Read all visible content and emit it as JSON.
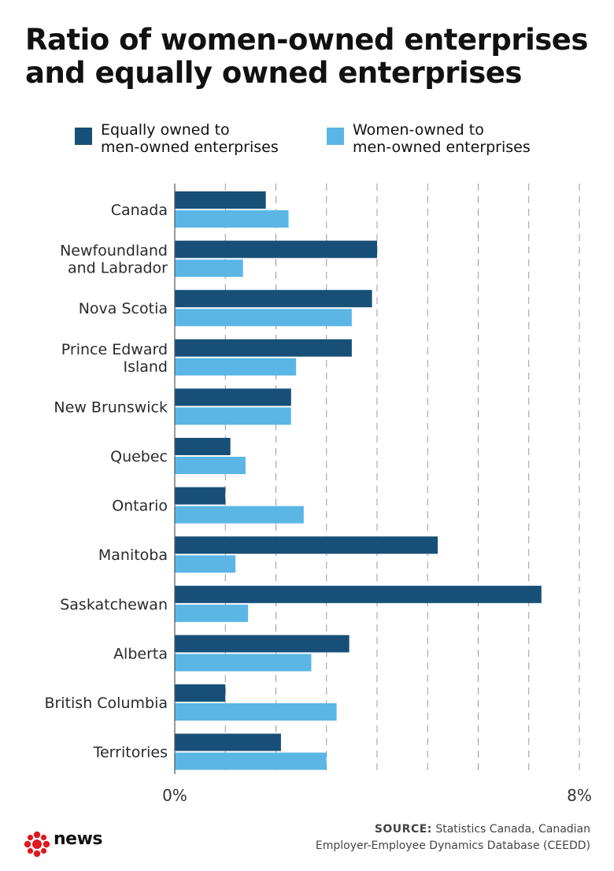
{
  "chart_data": {
    "type": "bar",
    "orientation": "horizontal",
    "title": "Ratio of women-owned enterprises and equally owned enterprises",
    "title_lines": [
      "Ratio of women-owned enterprises",
      "and equally owned enterprises"
    ],
    "categories": [
      "Canada",
      "Newfoundland and Labrador",
      "Nova Scotia",
      "Prince Edward Island",
      "New Brunswick",
      "Quebec",
      "Ontario",
      "Manitoba",
      "Saskatchewan",
      "Alberta",
      "British Columbia",
      "Territories"
    ],
    "category_label_lines": [
      [
        "Canada"
      ],
      [
        "Newfoundland",
        "and Labrador"
      ],
      [
        "Nova Scotia"
      ],
      [
        "Prince Edward",
        "Island"
      ],
      [
        "New Brunswick"
      ],
      [
        "Quebec"
      ],
      [
        "Ontario"
      ],
      [
        "Manitoba"
      ],
      [
        "Saskatchewan"
      ],
      [
        "Alberta"
      ],
      [
        "British Columbia"
      ],
      [
        "Territories"
      ]
    ],
    "series": [
      {
        "name": "Equally owned to men-owned enterprises",
        "name_lines": [
          "Equally owned to",
          "men-owned enterprises"
        ],
        "color": "#174f78",
        "values": [
          1.8,
          4.0,
          3.9,
          3.5,
          2.3,
          1.1,
          1.0,
          5.2,
          7.25,
          3.45,
          1.0,
          2.1
        ]
      },
      {
        "name": "Women-owned to men-owned enterprises",
        "name_lines": [
          "Women-owned to",
          "men-owned enterprises"
        ],
        "color": "#5bb6e6",
        "values": [
          2.25,
          1.35,
          3.5,
          2.4,
          2.3,
          1.4,
          2.55,
          1.2,
          1.45,
          2.7,
          3.2,
          3.0
        ]
      }
    ],
    "xlim": [
      0,
      8
    ],
    "x_tick_labels": [
      "0%",
      "8%"
    ],
    "xlabel": "",
    "ylabel": "",
    "grid": "vertical dashed every 1%",
    "legend_position": "top"
  },
  "footer": {
    "logo_text": "news",
    "source_label": "SOURCE:",
    "source_line1": "Statistics Canada, Canadian",
    "source_line2": "Employer-Employee Dynamics Database (CEEDD)"
  },
  "colors": {
    "logo_red": "#e0191f"
  }
}
